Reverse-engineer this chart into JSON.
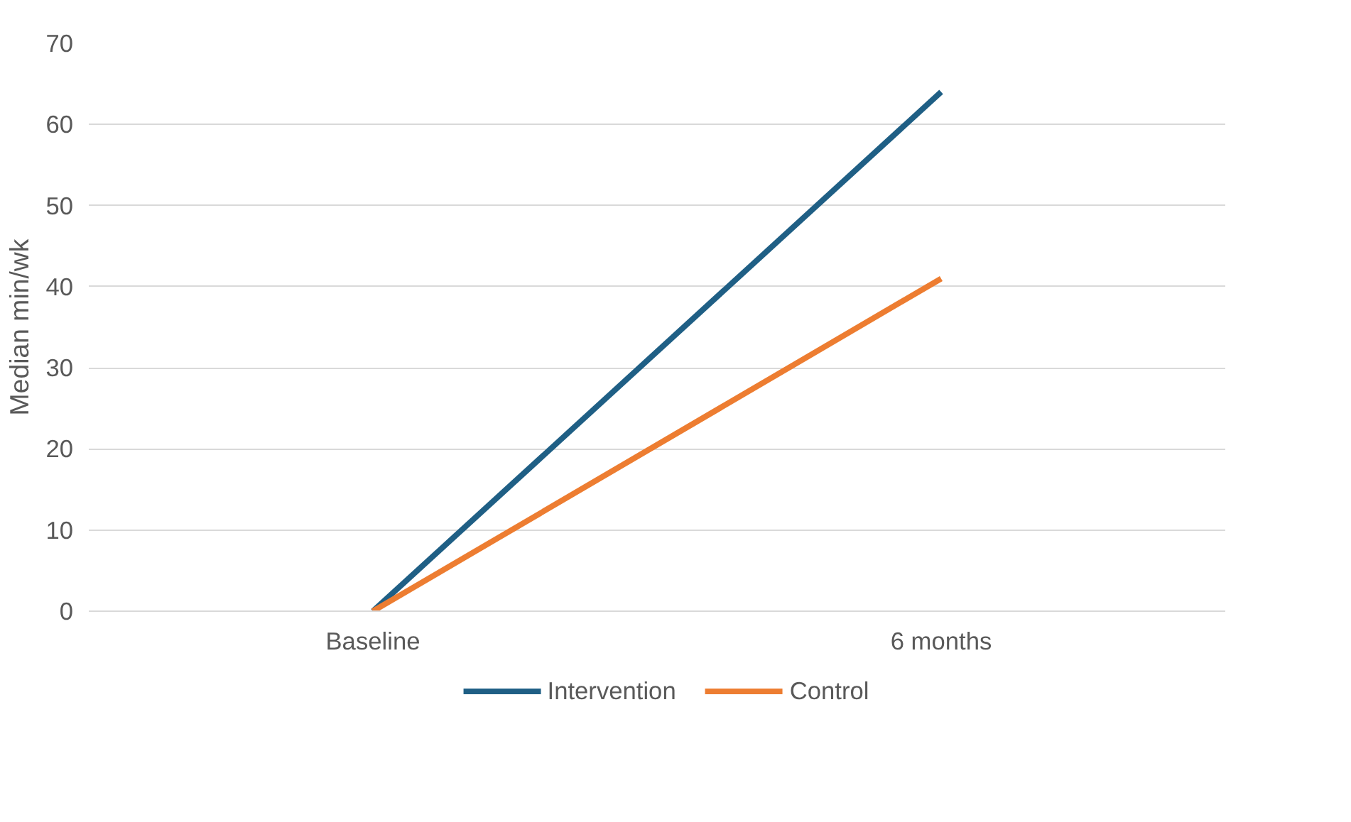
{
  "chart_data": {
    "type": "line",
    "ylabel": "Median min/wk",
    "categories": [
      "Baseline",
      "6 months"
    ],
    "series": [
      {
        "name": "Intervention",
        "color": "#1f5f85",
        "values": [
          0,
          64
        ]
      },
      {
        "name": "Control",
        "color": "#ed7d31",
        "values": [
          0,
          41
        ]
      }
    ],
    "ylim": [
      0,
      70
    ],
    "yticks": [
      0,
      10,
      20,
      30,
      40,
      50,
      60,
      70
    ],
    "grid": "y",
    "legend": "bottom",
    "marker": "none",
    "line_style": "solid"
  }
}
